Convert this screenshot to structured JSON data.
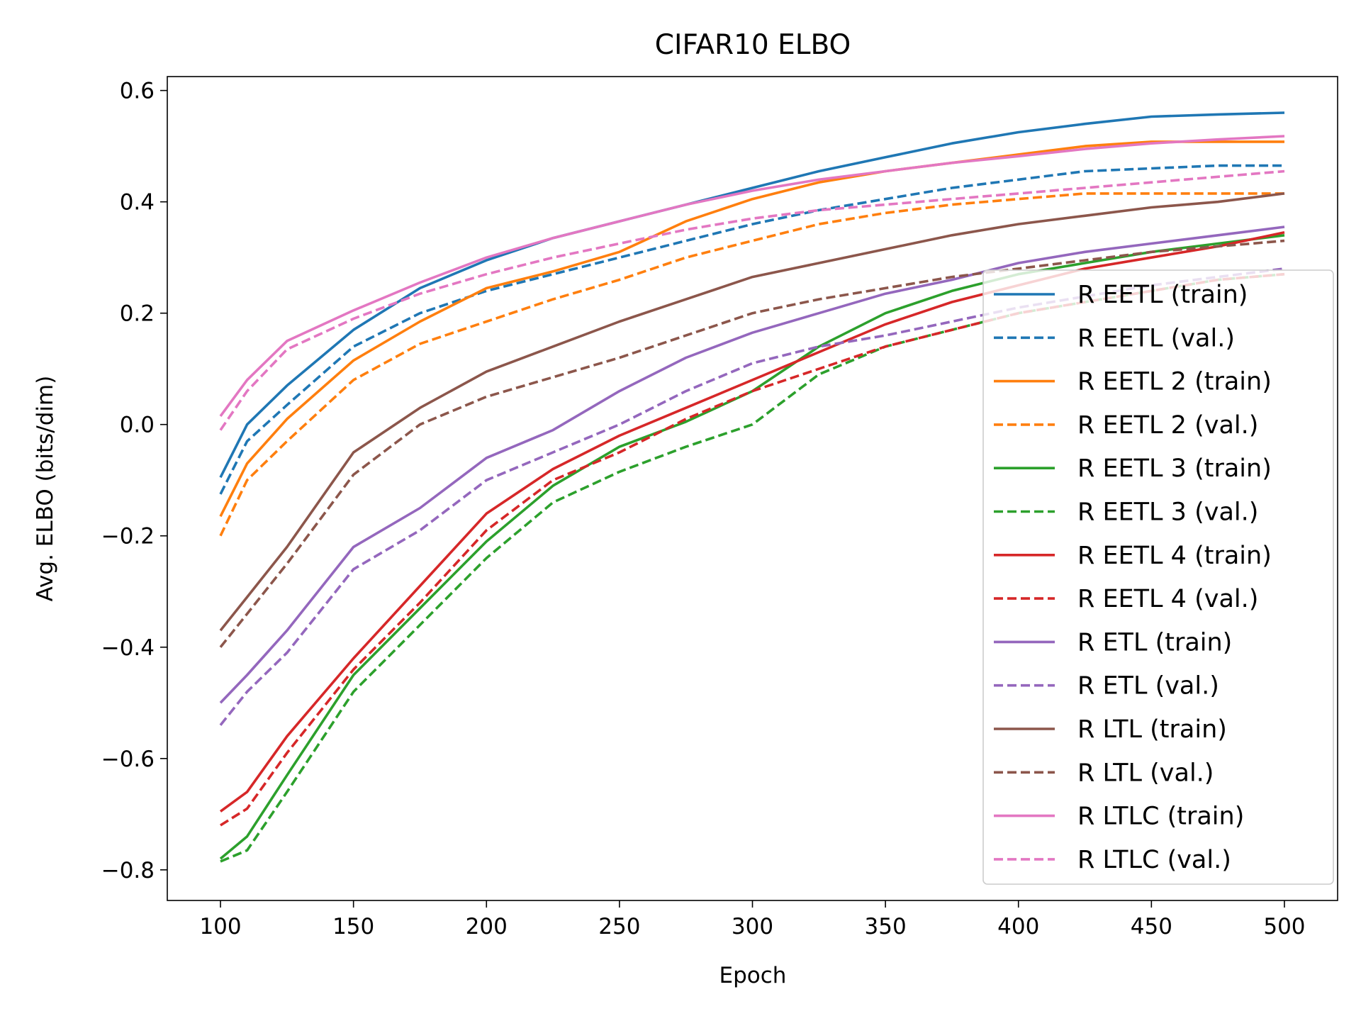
{
  "chart_data": {
    "type": "line",
    "title": "CIFAR10 ELBO",
    "xlabel": "Epoch",
    "ylabel": "Avg. ELBO (bits/dim)",
    "xlim": [
      80,
      520
    ],
    "ylim": [
      -0.855,
      0.625
    ],
    "xticks": [
      100,
      150,
      200,
      250,
      300,
      350,
      400,
      450,
      500
    ],
    "xtick_labels": [
      "100",
      "150",
      "200",
      "250",
      "300",
      "350",
      "400",
      "450",
      "500"
    ],
    "yticks": [
      -0.8,
      -0.6,
      -0.4,
      -0.2,
      0.0,
      0.2,
      0.4,
      0.6
    ],
    "ytick_labels": [
      "−0.8",
      "−0.6",
      "−0.4",
      "−0.2",
      "0.0",
      "0.2",
      "0.4",
      "0.6"
    ],
    "grid": false,
    "legend_position": "right",
    "x": [
      100,
      110,
      125,
      150,
      175,
      200,
      225,
      250,
      275,
      300,
      325,
      350,
      375,
      400,
      425,
      450,
      475,
      500
    ],
    "series": [
      {
        "name": "R EETL (train)",
        "color": "#1f77b4",
        "dash": false,
        "values": [
          -0.095,
          0.0,
          0.07,
          0.17,
          0.245,
          0.295,
          0.335,
          0.365,
          0.395,
          0.425,
          0.455,
          0.48,
          0.505,
          0.525,
          0.54,
          0.553,
          0.557,
          0.56
        ]
      },
      {
        "name": "R EETL (val.)",
        "color": "#1f77b4",
        "dash": true,
        "values": [
          -0.125,
          -0.03,
          0.035,
          0.14,
          0.2,
          0.24,
          0.27,
          0.3,
          0.33,
          0.36,
          0.385,
          0.405,
          0.425,
          0.44,
          0.455,
          0.46,
          0.465,
          0.465
        ]
      },
      {
        "name": "R EETL 2 (train)",
        "color": "#ff7f0e",
        "dash": false,
        "values": [
          -0.165,
          -0.07,
          0.01,
          0.115,
          0.185,
          0.245,
          0.275,
          0.31,
          0.365,
          0.405,
          0.435,
          0.455,
          0.47,
          0.485,
          0.5,
          0.508,
          0.508,
          0.508
        ]
      },
      {
        "name": "R EETL 2 (val.)",
        "color": "#ff7f0e",
        "dash": true,
        "values": [
          -0.2,
          -0.1,
          -0.03,
          0.08,
          0.145,
          0.185,
          0.225,
          0.26,
          0.3,
          0.33,
          0.36,
          0.38,
          0.395,
          0.405,
          0.415,
          0.415,
          0.415,
          0.415
        ]
      },
      {
        "name": "R EETL 3 (train)",
        "color": "#2ca02c",
        "dash": false,
        "values": [
          -0.78,
          -0.74,
          -0.63,
          -0.45,
          -0.33,
          -0.21,
          -0.11,
          -0.04,
          0.005,
          0.06,
          0.14,
          0.2,
          0.24,
          0.27,
          0.29,
          0.31,
          0.325,
          0.34
        ]
      },
      {
        "name": "R EETL 3 (val.)",
        "color": "#2ca02c",
        "dash": true,
        "values": [
          -0.785,
          -0.765,
          -0.66,
          -0.48,
          -0.36,
          -0.24,
          -0.14,
          -0.085,
          -0.04,
          0.0,
          0.09,
          0.14,
          0.17,
          0.2,
          0.22,
          0.24,
          0.26,
          0.27
        ]
      },
      {
        "name": "R EETL 4 (train)",
        "color": "#d62728",
        "dash": false,
        "values": [
          -0.695,
          -0.66,
          -0.56,
          -0.42,
          -0.29,
          -0.16,
          -0.08,
          -0.02,
          0.03,
          0.08,
          0.13,
          0.18,
          0.22,
          0.25,
          0.28,
          0.3,
          0.32,
          0.345
        ]
      },
      {
        "name": "R EETL 4 (val.)",
        "color": "#d62728",
        "dash": true,
        "values": [
          -0.72,
          -0.69,
          -0.59,
          -0.44,
          -0.32,
          -0.19,
          -0.1,
          -0.05,
          0.01,
          0.06,
          0.1,
          0.14,
          0.17,
          0.2,
          0.22,
          0.24,
          0.26,
          0.27
        ]
      },
      {
        "name": "R ETL (train)",
        "color": "#9467bd",
        "dash": false,
        "values": [
          -0.5,
          -0.45,
          -0.37,
          -0.22,
          -0.15,
          -0.06,
          -0.01,
          0.06,
          0.12,
          0.165,
          0.2,
          0.235,
          0.26,
          0.29,
          0.31,
          0.325,
          0.34,
          0.355
        ]
      },
      {
        "name": "R ETL (val.)",
        "color": "#9467bd",
        "dash": true,
        "values": [
          -0.54,
          -0.48,
          -0.41,
          -0.26,
          -0.19,
          -0.1,
          -0.05,
          0.0,
          0.06,
          0.11,
          0.14,
          0.16,
          0.185,
          0.21,
          0.23,
          0.25,
          0.265,
          0.28
        ]
      },
      {
        "name": "R LTL (train)",
        "color": "#8c564b",
        "dash": false,
        "values": [
          -0.37,
          -0.31,
          -0.22,
          -0.05,
          0.03,
          0.095,
          0.14,
          0.185,
          0.225,
          0.265,
          0.29,
          0.315,
          0.34,
          0.36,
          0.375,
          0.39,
          0.4,
          0.415
        ]
      },
      {
        "name": "R LTL (val.)",
        "color": "#8c564b",
        "dash": true,
        "values": [
          -0.4,
          -0.34,
          -0.25,
          -0.09,
          0.0,
          0.05,
          0.085,
          0.12,
          0.16,
          0.2,
          0.225,
          0.245,
          0.265,
          0.28,
          0.295,
          0.31,
          0.32,
          0.33
        ]
      },
      {
        "name": "R LTLC (train)",
        "color": "#e377c2",
        "dash": false,
        "values": [
          0.015,
          0.08,
          0.15,
          0.205,
          0.255,
          0.3,
          0.335,
          0.365,
          0.395,
          0.42,
          0.44,
          0.455,
          0.47,
          0.482,
          0.495,
          0.505,
          0.512,
          0.518
        ]
      },
      {
        "name": "R LTLC (val.)",
        "color": "#e377c2",
        "dash": true,
        "values": [
          -0.01,
          0.06,
          0.135,
          0.19,
          0.235,
          0.27,
          0.3,
          0.325,
          0.35,
          0.37,
          0.385,
          0.395,
          0.405,
          0.415,
          0.425,
          0.435,
          0.445,
          0.455
        ]
      }
    ]
  }
}
